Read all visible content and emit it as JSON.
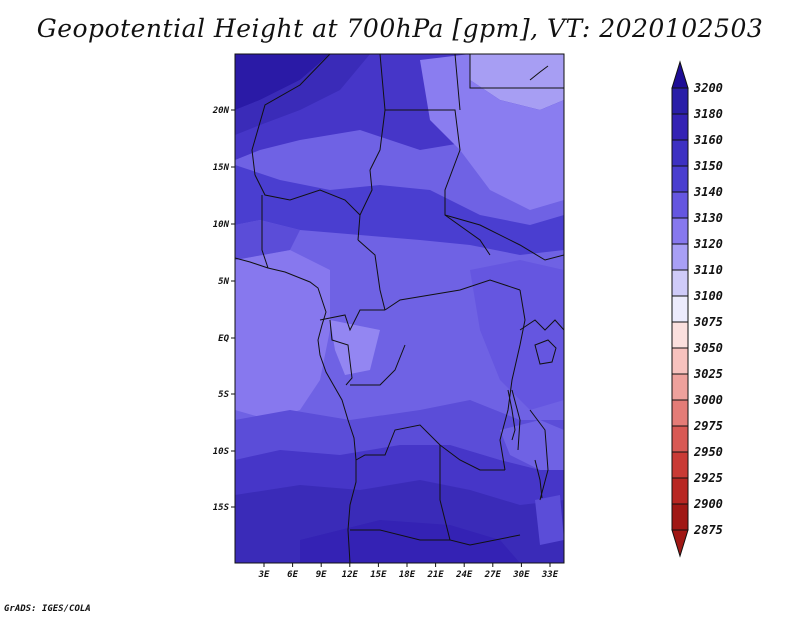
{
  "title": "Geopotential Height at 700hPa [gpm], VT: 2020102503",
  "footer": "GrADS: IGES/COLA",
  "lat_ticks": [
    "20N",
    "15N",
    "10N",
    "5N",
    "EQ",
    "5S",
    "10S",
    "15S"
  ],
  "lon_ticks": [
    "3E",
    "6E",
    "9E",
    "12E",
    "15E",
    "18E",
    "21E",
    "24E",
    "27E",
    "30E",
    "33E"
  ],
  "colorbar": {
    "levels": [
      "3200",
      "3180",
      "3160",
      "3150",
      "3140",
      "3130",
      "3120",
      "3110",
      "3100",
      "3075",
      "3050",
      "3025",
      "3000",
      "2975",
      "2950",
      "2925",
      "2900",
      "2875"
    ],
    "colors": [
      "#1e0d96",
      "#2a1ea8",
      "#3422b4",
      "#3d31c2",
      "#4a3ed0",
      "#6556e0",
      "#8778ee",
      "#a89ff5",
      "#cfcbf9",
      "#ecebfc",
      "#fbe0de",
      "#f7c2be",
      "#eea19c",
      "#e47c77",
      "#d85954",
      "#c93a35",
      "#b82723",
      "#a01815"
    ]
  },
  "map": {
    "region": "Central Africa",
    "lon_range": [
      0,
      35
    ],
    "lat_range": [
      -20,
      25
    ],
    "field_colors": {
      "ne_light": "#a79ef3",
      "light": "#8a7df0",
      "mid": "#6f62e4",
      "mid_dark": "#5b4dd8",
      "dark": "#4636c8",
      "darker": "#3a2bb8",
      "darkest": "#2a1aa6"
    }
  }
}
